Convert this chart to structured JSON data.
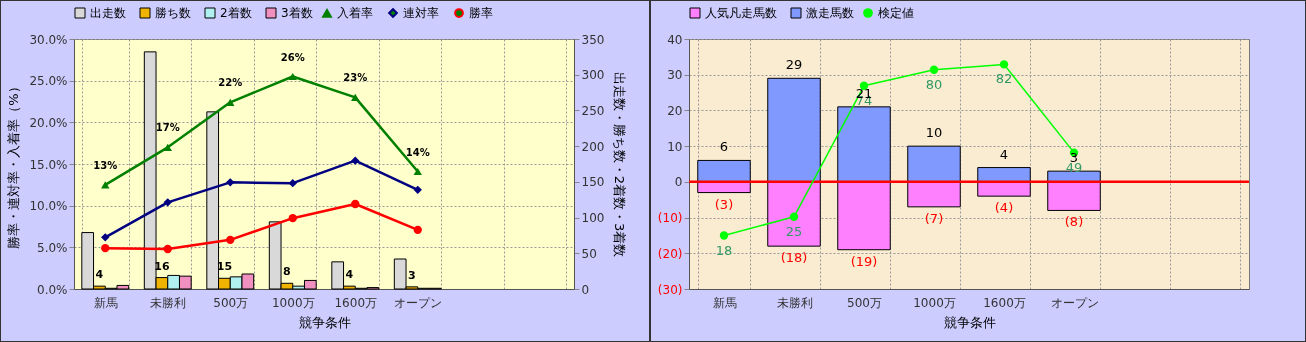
{
  "chart_data": [
    {
      "type": "bar",
      "categories": [
        "新馬",
        "未勝利",
        "500万",
        "1000万",
        "1600万",
        "オープン",
        null,
        null
      ],
      "xlabel": "競争条件",
      "ylabel": "勝率・連対率・入着率（%）",
      "y2label": "出走数・勝ち数・2着数・3着数",
      "ylim": [
        0,
        30
      ],
      "yticks": [
        {
          "value": 0,
          "label": "0.0%"
        },
        {
          "value": 5,
          "label": "5.0%"
        },
        {
          "value": 10,
          "label": "10.0%"
        },
        {
          "value": 15,
          "label": "15.0%"
        },
        {
          "value": 20,
          "label": "20.0%"
        },
        {
          "value": 25,
          "label": "25.0%"
        },
        {
          "value": 30,
          "label": "30.0%"
        }
      ],
      "y2lim": [
        0,
        350
      ],
      "y2ticks": [
        0,
        50,
        100,
        150,
        200,
        250,
        300,
        350
      ],
      "grid": true,
      "legend": "top",
      "series": [
        {
          "name": "出走数",
          "axis": "y2",
          "color": "#d9d9d9",
          "values": [
            79,
            332,
            248,
            94,
            38,
            42,
            null,
            null
          ]
        },
        {
          "name": "勝ち数",
          "axis": "y2",
          "color": "#f0b400",
          "values": [
            4,
            16,
            15,
            8,
            4,
            3,
            null,
            null
          ],
          "value_labels": [
            "4",
            "16",
            "15",
            "8",
            "4",
            "3",
            null,
            null
          ]
        },
        {
          "name": "2着数",
          "axis": "y2",
          "color": "#b0f0f0",
          "values": [
            1,
            19,
            17,
            4,
            1,
            1,
            null,
            null
          ]
        },
        {
          "name": "3着数",
          "axis": "y2",
          "color": "#f090c0",
          "values": [
            5,
            18,
            21,
            12,
            2,
            1,
            null,
            null
          ]
        },
        {
          "name": "入着率",
          "type": "line",
          "marker": "triangle",
          "color": "#008000",
          "values": [
            12.5,
            17.0,
            22.4,
            25.5,
            23.0,
            14.1,
            null,
            null
          ],
          "value_labels": [
            "13%",
            "17%",
            "22%",
            "26%",
            "23%",
            "14%",
            null,
            null
          ]
        },
        {
          "name": "連対率",
          "type": "line",
          "marker": "diamond",
          "color": "#000080",
          "values": [
            6.2,
            10.4,
            12.8,
            12.7,
            15.4,
            11.9,
            null,
            null
          ]
        },
        {
          "name": "勝率",
          "type": "line",
          "marker": "circle",
          "color": "#ff0000",
          "values": [
            4.9,
            4.8,
            5.9,
            8.5,
            10.2,
            7.1,
            null,
            null
          ]
        }
      ]
    },
    {
      "type": "bar",
      "stacked": true,
      "categories": [
        "新馬",
        "未勝利",
        "500万",
        "1000万",
        "1600万",
        "オープン",
        null,
        null
      ],
      "xlabel": "競争条件",
      "ylim": [
        -30,
        40
      ],
      "yticks": [
        {
          "value": -30,
          "label": "(30)"
        },
        {
          "value": -20,
          "label": "(20)"
        },
        {
          "value": -10,
          "label": "(10)"
        },
        0,
        10,
        20,
        30,
        40
      ],
      "y2lim": [
        -2,
        91.5
      ],
      "grid": true,
      "legend": "top",
      "ref_lines": [
        {
          "axis": "y",
          "value": 0,
          "color": "#ff0000"
        }
      ],
      "series": [
        {
          "name": "人気凡走馬数",
          "color": "#ff80ff",
          "values": [
            -3,
            -18,
            -19,
            -7,
            -4,
            -8,
            null,
            null
          ],
          "value_labels": [
            "(3)",
            "(18)",
            "(19)",
            "(7)",
            "(4)",
            "(8)",
            null,
            null
          ]
        },
        {
          "name": "激走馬数",
          "color": "#8099ff",
          "values": [
            6,
            29,
            21,
            10,
            4,
            3,
            null,
            null
          ],
          "value_labels": [
            "6",
            "29",
            "21",
            "10",
            "4",
            "3",
            null,
            null
          ]
        },
        {
          "name": "検定値",
          "type": "line",
          "axis": "y2",
          "marker": "circle",
          "color": "#00ff00",
          "values": [
            18,
            25,
            74,
            80,
            82,
            49,
            null,
            null
          ],
          "value_labels": [
            "18",
            "25",
            "74",
            "80",
            "82",
            "49",
            null,
            null
          ]
        }
      ]
    }
  ]
}
